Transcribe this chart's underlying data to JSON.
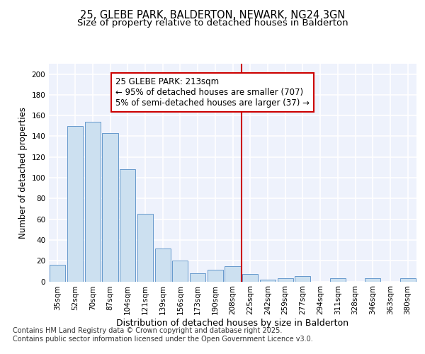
{
  "title": "25, GLEBE PARK, BALDERTON, NEWARK, NG24 3GN",
  "subtitle": "Size of property relative to detached houses in Balderton",
  "xlabel": "Distribution of detached houses by size in Balderton",
  "ylabel": "Number of detached properties",
  "categories": [
    "35sqm",
    "52sqm",
    "70sqm",
    "87sqm",
    "104sqm",
    "121sqm",
    "139sqm",
    "156sqm",
    "173sqm",
    "190sqm",
    "208sqm",
    "225sqm",
    "242sqm",
    "259sqm",
    "277sqm",
    "294sqm",
    "311sqm",
    "328sqm",
    "346sqm",
    "363sqm",
    "380sqm"
  ],
  "values": [
    16,
    150,
    154,
    143,
    108,
    65,
    32,
    20,
    8,
    11,
    15,
    7,
    2,
    3,
    5,
    0,
    3,
    0,
    3,
    0,
    3
  ],
  "bar_color": "#cce0f0",
  "bar_edge_color": "#6699cc",
  "vline_x": 10.5,
  "vline_color": "#cc0000",
  "annotation_text": "25 GLEBE PARK: 213sqm\n← 95% of detached houses are smaller (707)\n5% of semi-detached houses are larger (37) →",
  "annotation_box_color": "#ffffff",
  "annotation_box_edge": "#cc0000",
  "ylim": [
    0,
    210
  ],
  "yticks": [
    0,
    20,
    40,
    60,
    80,
    100,
    120,
    140,
    160,
    180,
    200
  ],
  "background_color": "#eef2fc",
  "grid_color": "#ffffff",
  "footer": "Contains HM Land Registry data © Crown copyright and database right 2025.\nContains public sector information licensed under the Open Government Licence v3.0.",
  "title_fontsize": 10.5,
  "subtitle_fontsize": 9.5,
  "xlabel_fontsize": 9,
  "ylabel_fontsize": 8.5,
  "tick_fontsize": 7.5,
  "annotation_fontsize": 8.5,
  "footer_fontsize": 7
}
